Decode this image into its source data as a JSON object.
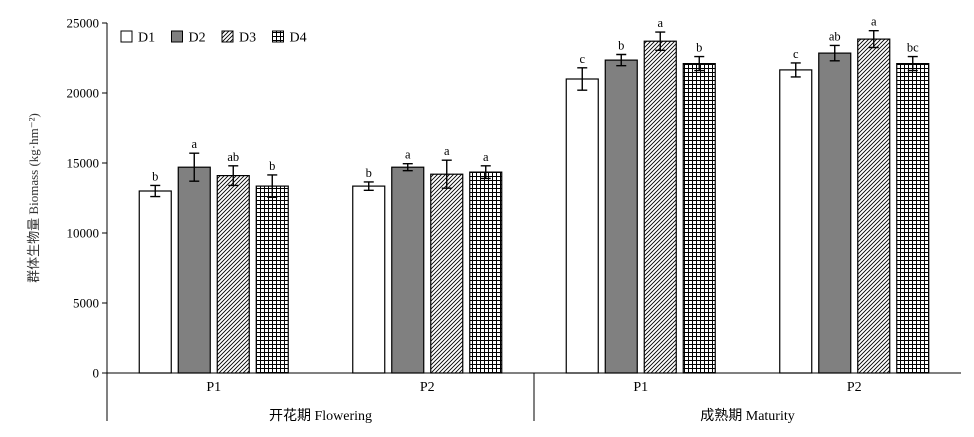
{
  "chart_data": {
    "type": "bar",
    "ylabel": "群体生物量 Biomass (kg·hm⁻²)",
    "ylim": [
      0,
      25000
    ],
    "yticks": [
      0,
      5000,
      10000,
      15000,
      20000,
      25000
    ],
    "categories": [
      "P1",
      "P2",
      "P1",
      "P2"
    ],
    "category_groups": [
      "开花期 Flowering",
      "成熟期 Maturity"
    ],
    "legend": "top-left",
    "grid": false,
    "error_bars": true,
    "series": [
      {
        "name": "D1",
        "color": "#ffffff",
        "values": [
          13000,
          13350,
          21000,
          21650
        ],
        "errors": [
          400,
          300,
          800,
          500
        ],
        "letters": [
          "b",
          "b",
          "c",
          "c"
        ]
      },
      {
        "name": "D2",
        "color": "#808080",
        "values": [
          14700,
          14700,
          22350,
          22850
        ],
        "errors": [
          1000,
          250,
          400,
          550
        ],
        "letters": [
          "a",
          "a",
          "b",
          "ab"
        ]
      },
      {
        "name": "D3",
        "color": "#000000",
        "values": [
          14100,
          14200,
          23700,
          23850
        ],
        "errors": [
          700,
          1000,
          650,
          600
        ],
        "letters": [
          "ab",
          "a",
          "a",
          "a"
        ]
      },
      {
        "name": "D4",
        "color": "#000000",
        "values": [
          13350,
          14350,
          22100,
          22100
        ],
        "errors": [
          800,
          450,
          500,
          500
        ],
        "letters": [
          "b",
          "a",
          "b",
          "bc"
        ]
      }
    ]
  }
}
